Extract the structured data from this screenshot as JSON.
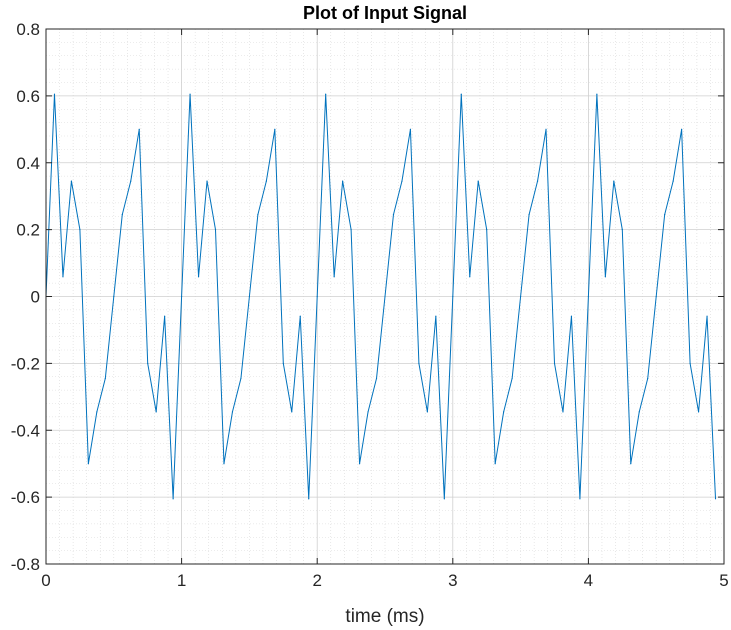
{
  "chart_data": {
    "type": "line",
    "title": "Plot of Input Signal",
    "xlabel": "time (ms)",
    "ylabel": "",
    "xlim": [
      0,
      5
    ],
    "ylim": [
      -0.8,
      0.8
    ],
    "xticks": [
      "0",
      "1",
      "2",
      "3",
      "4",
      "5"
    ],
    "yticks": [
      "-0.8",
      "-0.6",
      "-0.4",
      "-0.2",
      "0",
      "0.2",
      "0.4",
      "0.6",
      "0.8"
    ],
    "grid": true,
    "minor_grid": true,
    "series_color": "#0072BD",
    "x": [
      0.0,
      0.0625,
      0.125,
      0.1875,
      0.25,
      0.3125,
      0.375,
      0.4375,
      0.5,
      0.5625,
      0.625,
      0.6875,
      0.75,
      0.8125,
      0.875,
      0.9375,
      1.0,
      1.0625,
      1.125,
      1.1875,
      1.25,
      1.3125,
      1.375,
      1.4375,
      1.5,
      1.5625,
      1.625,
      1.6875,
      1.75,
      1.8125,
      1.875,
      1.9375,
      2.0,
      2.0625,
      2.125,
      2.1875,
      2.25,
      2.3125,
      2.375,
      2.4375,
      2.5,
      2.5625,
      2.625,
      2.6875,
      2.75,
      2.8125,
      2.875,
      2.9375,
      3.0,
      3.0625,
      3.125,
      3.1875,
      3.25,
      3.3125,
      3.375,
      3.4375,
      3.5,
      3.5625,
      3.625,
      3.6875,
      3.75,
      3.8125,
      3.875,
      3.9375,
      4.0,
      4.0625,
      4.125,
      4.1875,
      4.25,
      4.3125,
      4.375,
      4.4375,
      4.5,
      4.5625,
      4.625,
      4.6875,
      4.75,
      4.8125,
      4.875,
      4.9375
    ],
    "values": [
      0.0,
      0.605,
      0.059,
      0.345,
      0.2,
      -0.5,
      -0.345,
      -0.245,
      0.0,
      0.245,
      0.345,
      0.5,
      -0.2,
      -0.345,
      -0.059,
      -0.605,
      0.0,
      0.605,
      0.059,
      0.345,
      0.2,
      -0.5,
      -0.345,
      -0.245,
      0.0,
      0.245,
      0.345,
      0.5,
      -0.2,
      -0.345,
      -0.059,
      -0.605,
      0.0,
      0.605,
      0.059,
      0.345,
      0.2,
      -0.5,
      -0.345,
      -0.245,
      0.0,
      0.245,
      0.345,
      0.5,
      -0.2,
      -0.345,
      -0.059,
      -0.605,
      0.0,
      0.605,
      0.059,
      0.345,
      0.2,
      -0.5,
      -0.345,
      -0.245,
      0.0,
      0.245,
      0.345,
      0.5,
      -0.2,
      -0.345,
      -0.059,
      -0.605,
      0.0,
      0.605,
      0.059,
      0.345,
      0.2,
      -0.5,
      -0.345,
      -0.245,
      0.0,
      0.245,
      0.345,
      0.5,
      -0.2,
      -0.345,
      -0.059,
      -0.605
    ]
  }
}
